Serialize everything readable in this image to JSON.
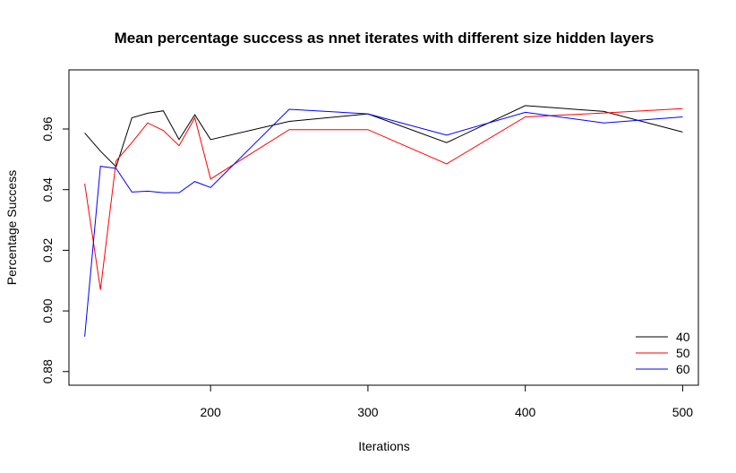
{
  "chart_data": {
    "type": "line",
    "title": "Mean percentage success as nnet iterates with different size hidden layers",
    "xlabel": "Iterations",
    "ylabel": "Percentage Success",
    "xlim": [
      110,
      510
    ],
    "ylim": [
      0.8755,
      0.9795
    ],
    "xticks": [
      200,
      300,
      400,
      500
    ],
    "yticks": [
      0.88,
      0.9,
      0.92,
      0.94,
      0.96
    ],
    "ytick_labels": [
      "0.88",
      "0.90",
      "0.92",
      "0.94",
      "0.96"
    ],
    "grid": false,
    "legend_position": "bottom-right",
    "series": [
      {
        "name": "40",
        "color": "#000000",
        "x": [
          120,
          130,
          140,
          150,
          160,
          170,
          180,
          190,
          200,
          250,
          300,
          350,
          400,
          450,
          500
        ],
        "y": [
          0.9587,
          0.9527,
          0.9475,
          0.9637,
          0.9652,
          0.966,
          0.9565,
          0.9647,
          0.9565,
          0.9625,
          0.965,
          0.9555,
          0.9677,
          0.9658,
          0.959
        ]
      },
      {
        "name": "50",
        "color": "#ff0000",
        "x": [
          120,
          130,
          140,
          150,
          160,
          170,
          180,
          190,
          200,
          250,
          300,
          350,
          400,
          450,
          500
        ],
        "y": [
          0.942,
          0.907,
          0.9495,
          0.9555,
          0.962,
          0.9595,
          0.9545,
          0.9637,
          0.9435,
          0.9598,
          0.9598,
          0.9485,
          0.964,
          0.9653,
          0.9667
        ]
      },
      {
        "name": "60",
        "color": "#0000ff",
        "x": [
          120,
          130,
          140,
          150,
          160,
          170,
          180,
          190,
          200,
          250,
          300,
          350,
          400,
          450,
          500
        ],
        "y": [
          0.8915,
          0.9477,
          0.947,
          0.9392,
          0.9395,
          0.939,
          0.939,
          0.9427,
          0.9407,
          0.9665,
          0.965,
          0.958,
          0.9655,
          0.962,
          0.964
        ]
      }
    ]
  }
}
